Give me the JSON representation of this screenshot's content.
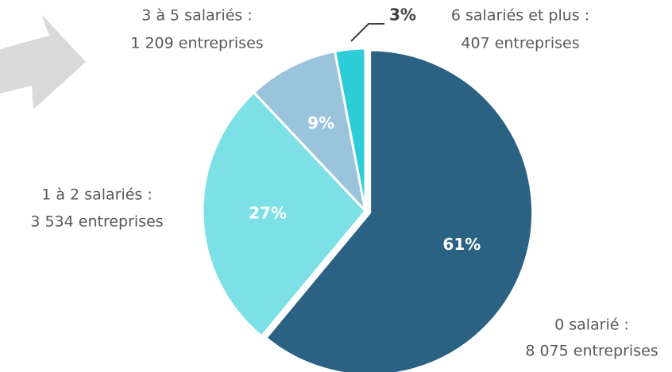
{
  "chart_data": {
    "type": "pie",
    "categories": [
      "0 salarié :",
      "1 à 2 salariés :",
      "3 à 5 salariés :",
      "6 salariés et plus :"
    ],
    "details": [
      "8 075 entreprises",
      "3 534 entreprises",
      "1 209 entreprises",
      "407 entreprises"
    ],
    "values": [
      61,
      27,
      9,
      3
    ],
    "value_labels": [
      "61%",
      "27%",
      "9%",
      "3%"
    ],
    "colors": [
      "#2b6283",
      "#7de0e6",
      "#9ac4dc",
      "#2ccdd8"
    ]
  }
}
